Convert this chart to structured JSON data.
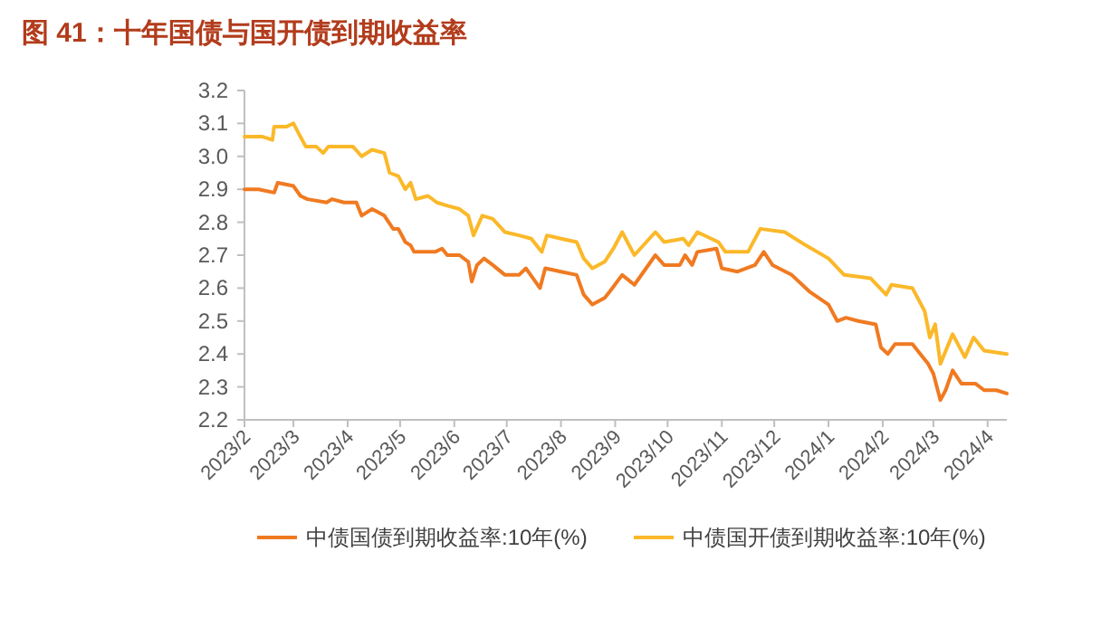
{
  "chart_data": {
    "type": "line",
    "title": "图 41：十年国债与国开债到期收益率",
    "xlim": [
      "2023-02-01",
      "2024-04-12"
    ],
    "xticks": [
      {
        "value": "2023-02-01",
        "label": "2023/2"
      },
      {
        "value": "2023-03-01",
        "label": "2023/3"
      },
      {
        "value": "2023-04-01",
        "label": "2023/4"
      },
      {
        "value": "2023-05-01",
        "label": "2023/5"
      },
      {
        "value": "2023-06-01",
        "label": "2023/6"
      },
      {
        "value": "2023-07-01",
        "label": "2023/7"
      },
      {
        "value": "2023-08-01",
        "label": "2023/8"
      },
      {
        "value": "2023-09-01",
        "label": "2023/9"
      },
      {
        "value": "2023-10-01",
        "label": "2023/10"
      },
      {
        "value": "2023-11-01",
        "label": "2023/11"
      },
      {
        "value": "2023-12-01",
        "label": "2023/12"
      },
      {
        "value": "2024-01-01",
        "label": "2024/1"
      },
      {
        "value": "2024-02-01",
        "label": "2024/2"
      },
      {
        "value": "2024-03-01",
        "label": "2024/3"
      },
      {
        "value": "2024-04-01",
        "label": "2024/4"
      }
    ],
    "ylim": [
      2.2,
      3.2
    ],
    "yticks": [
      2.2,
      2.3,
      2.4,
      2.5,
      2.6,
      2.7,
      2.8,
      2.9,
      {
        "value": 3.0,
        "label": "3.0"
      },
      3.1,
      3.2
    ],
    "legend": "bottom",
    "series": [
      {
        "name": "中债国债到期收益率:10年(%)",
        "color": "#f07a21",
        "x": [
          "2023-02-01",
          "2023-02-09",
          "2023-02-18",
          "2023-02-20",
          "2023-03-01",
          "2023-03-05",
          "2023-03-09",
          "2023-03-20",
          "2023-03-23",
          "2023-03-30",
          "2023-04-06",
          "2023-04-09",
          "2023-04-15",
          "2023-04-22",
          "2023-04-27",
          "2023-04-30",
          "2023-05-04",
          "2023-05-07",
          "2023-05-09",
          "2023-05-14",
          "2023-05-21",
          "2023-05-25",
          "2023-05-28",
          "2023-06-04",
          "2023-06-09",
          "2023-06-11",
          "2023-06-14",
          "2023-06-18",
          "2023-06-23",
          "2023-06-30",
          "2023-07-08",
          "2023-07-12",
          "2023-07-20",
          "2023-07-23",
          "2023-08-01",
          "2023-08-10",
          "2023-08-14",
          "2023-08-19",
          "2023-08-26",
          "2023-08-29",
          "2023-09-05",
          "2023-09-12",
          "2023-09-24",
          "2023-09-29",
          "2023-10-08",
          "2023-10-11",
          "2023-10-15",
          "2023-10-18",
          "2023-10-29",
          "2023-11-01",
          "2023-11-10",
          "2023-11-20",
          "2023-11-25",
          "2023-11-30",
          "2023-12-11",
          "2023-12-21",
          "2024-01-01",
          "2024-01-06",
          "2024-01-11",
          "2024-01-18",
          "2024-01-28",
          "2024-01-31",
          "2024-02-04",
          "2024-02-08",
          "2024-02-18",
          "2024-02-27",
          "2024-03-01",
          "2024-03-05",
          "2024-03-08",
          "2024-03-12",
          "2024-03-17",
          "2024-03-25",
          "2024-03-30",
          "2024-04-06",
          "2024-04-12"
        ],
        "values": [
          2.9,
          2.9,
          2.89,
          2.92,
          2.91,
          2.88,
          2.87,
          2.86,
          2.87,
          2.86,
          2.86,
          2.82,
          2.84,
          2.82,
          2.78,
          2.78,
          2.74,
          2.73,
          2.71,
          2.71,
          2.71,
          2.72,
          2.7,
          2.7,
          2.68,
          2.62,
          2.67,
          2.69,
          2.67,
          2.64,
          2.64,
          2.66,
          2.6,
          2.66,
          2.65,
          2.64,
          2.58,
          2.55,
          2.57,
          2.59,
          2.64,
          2.61,
          2.7,
          2.67,
          2.67,
          2.7,
          2.67,
          2.71,
          2.72,
          2.66,
          2.65,
          2.67,
          2.71,
          2.67,
          2.64,
          2.59,
          2.55,
          2.5,
          2.51,
          2.5,
          2.49,
          2.42,
          2.4,
          2.43,
          2.43,
          2.37,
          2.34,
          2.26,
          2.29,
          2.35,
          2.31,
          2.31,
          2.29,
          2.29,
          2.28
        ]
      },
      {
        "name": "中债国开债到期收益率:10年(%)",
        "color": "#fbb829",
        "x": [
          "2023-02-01",
          "2023-02-11",
          "2023-02-17",
          "2023-02-18",
          "2023-02-25",
          "2023-03-01",
          "2023-03-04",
          "2023-03-08",
          "2023-03-14",
          "2023-03-18",
          "2023-03-21",
          "2023-04-04",
          "2023-04-09",
          "2023-04-15",
          "2023-04-22",
          "2023-04-25",
          "2023-04-30",
          "2023-05-04",
          "2023-05-07",
          "2023-05-10",
          "2023-05-17",
          "2023-05-22",
          "2023-05-28",
          "2023-06-04",
          "2023-06-09",
          "2023-06-12",
          "2023-06-17",
          "2023-06-23",
          "2023-06-30",
          "2023-07-08",
          "2023-07-15",
          "2023-07-21",
          "2023-07-24",
          "2023-08-01",
          "2023-08-10",
          "2023-08-14",
          "2023-08-19",
          "2023-08-26",
          "2023-08-31",
          "2023-09-05",
          "2023-09-12",
          "2023-09-24",
          "2023-09-29",
          "2023-10-10",
          "2023-10-13",
          "2023-10-18",
          "2023-10-30",
          "2023-11-03",
          "2023-11-16",
          "2023-11-23",
          "2023-12-07",
          "2023-12-19",
          "2024-01-01",
          "2024-01-10",
          "2024-01-25",
          "2024-02-03",
          "2024-02-06",
          "2024-02-18",
          "2024-02-25",
          "2024-02-28",
          "2024-03-02",
          "2024-03-05",
          "2024-03-12",
          "2024-03-19",
          "2024-03-24",
          "2024-03-30",
          "2024-04-12"
        ],
        "values": [
          3.06,
          3.06,
          3.05,
          3.09,
          3.09,
          3.1,
          3.07,
          3.03,
          3.03,
          3.01,
          3.03,
          3.03,
          3.0,
          3.02,
          3.01,
          2.95,
          2.94,
          2.9,
          2.92,
          2.87,
          2.88,
          2.86,
          2.85,
          2.84,
          2.82,
          2.76,
          2.82,
          2.81,
          2.77,
          2.76,
          2.75,
          2.71,
          2.76,
          2.75,
          2.74,
          2.69,
          2.66,
          2.68,
          2.72,
          2.77,
          2.7,
          2.77,
          2.74,
          2.75,
          2.73,
          2.77,
          2.74,
          2.71,
          2.71,
          2.78,
          2.77,
          2.73,
          2.69,
          2.64,
          2.63,
          2.58,
          2.61,
          2.6,
          2.53,
          2.45,
          2.49,
          2.37,
          2.46,
          2.39,
          2.45,
          2.41,
          2.4
        ]
      }
    ]
  }
}
